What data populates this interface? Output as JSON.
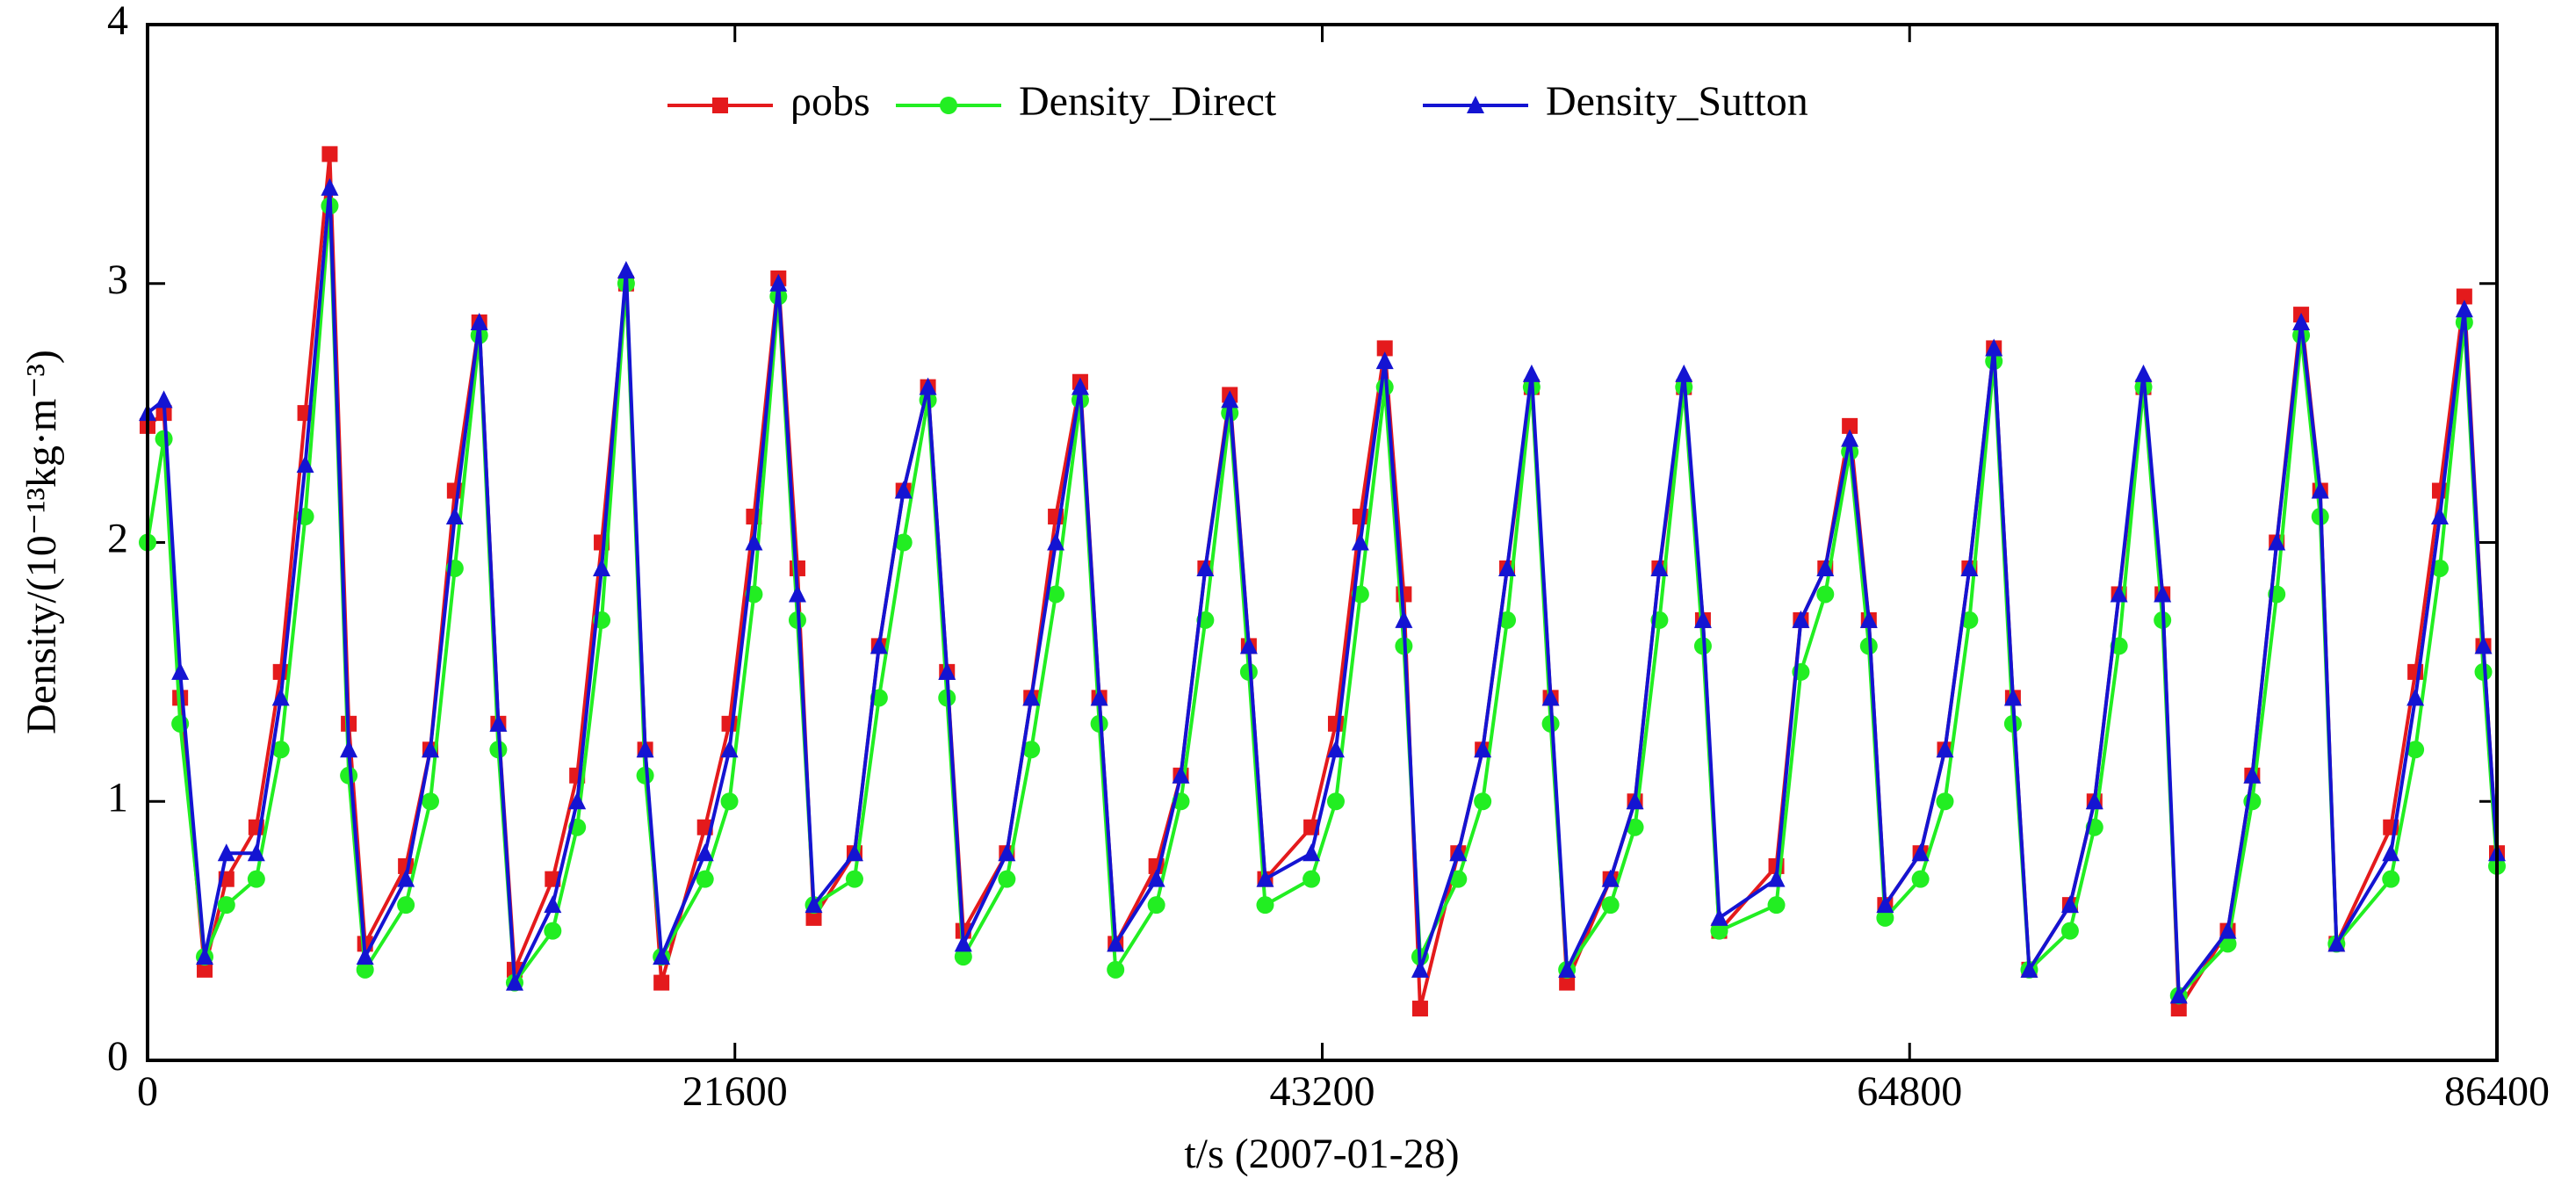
{
  "chart_data": {
    "type": "line",
    "xlabel": "t/s (2007-01-28)",
    "ylabel": "Density/(10⁻¹³kg·m⁻³)",
    "xlim": [
      0,
      86400
    ],
    "xticks": [
      0,
      21600,
      43200,
      64800,
      86400
    ],
    "ylim": [
      0,
      4
    ],
    "yticks": [
      0,
      1,
      2,
      3,
      4
    ],
    "legend": "top",
    "x": [
      0,
      600,
      1200,
      2100,
      2900,
      4000,
      4900,
      5800,
      6700,
      7400,
      8000,
      9500,
      10400,
      11300,
      12200,
      12900,
      13500,
      14900,
      15800,
      16700,
      17600,
      18300,
      18900,
      20500,
      21400,
      22300,
      23200,
      23900,
      24500,
      26000,
      26900,
      27800,
      28700,
      29400,
      30000,
      31600,
      32500,
      33400,
      34300,
      35000,
      35600,
      37100,
      38000,
      38900,
      39800,
      40500,
      41100,
      42800,
      43700,
      44600,
      45500,
      46200,
      46800,
      48200,
      49100,
      50000,
      50900,
      51600,
      52200,
      53800,
      54700,
      55600,
      56500,
      57200,
      57800,
      59900,
      60800,
      61700,
      62600,
      63300,
      63900,
      65200,
      66100,
      67000,
      67900,
      68600,
      69200,
      70700,
      71600,
      72500,
      73400,
      74100,
      74700,
      76500,
      77400,
      78300,
      79200,
      79900,
      80500,
      82500,
      83400,
      84300,
      85200,
      85900,
      86400
    ],
    "series": [
      {
        "name": "ρobs",
        "color": "#e41a1c",
        "marker": "square",
        "values": [
          2.45,
          2.5,
          1.4,
          0.35,
          0.7,
          0.9,
          1.5,
          2.5,
          3.5,
          1.3,
          0.45,
          0.75,
          1.2,
          2.2,
          2.85,
          1.3,
          0.35,
          0.7,
          1.1,
          2.0,
          3.0,
          1.2,
          0.3,
          0.9,
          1.3,
          2.1,
          3.02,
          1.9,
          0.55,
          0.8,
          1.6,
          2.2,
          2.6,
          1.5,
          0.5,
          0.8,
          1.4,
          2.1,
          2.62,
          1.4,
          0.45,
          0.75,
          1.1,
          1.9,
          2.57,
          1.6,
          0.7,
          0.9,
          1.3,
          2.1,
          2.75,
          1.8,
          0.2,
          0.8,
          1.2,
          1.9,
          2.6,
          1.4,
          0.3,
          0.7,
          1.0,
          1.9,
          2.6,
          1.7,
          0.5,
          0.75,
          1.7,
          1.9,
          2.45,
          1.7,
          0.6,
          0.8,
          1.2,
          1.9,
          2.75,
          1.4,
          0.35,
          0.6,
          1.0,
          1.8,
          2.6,
          1.8,
          0.2,
          0.5,
          1.1,
          2.0,
          2.88,
          2.2,
          0.45,
          0.9,
          1.5,
          2.2,
          2.95,
          1.6,
          0.8
        ]
      },
      {
        "name": "Density_Direct",
        "color": "#22ee22",
        "marker": "circle",
        "values": [
          2.0,
          2.4,
          1.3,
          0.4,
          0.6,
          0.7,
          1.2,
          2.1,
          3.3,
          1.1,
          0.35,
          0.6,
          1.0,
          1.9,
          2.8,
          1.2,
          0.3,
          0.5,
          0.9,
          1.7,
          3.0,
          1.1,
          0.4,
          0.7,
          1.0,
          1.8,
          2.95,
          1.7,
          0.6,
          0.7,
          1.4,
          2.0,
          2.55,
          1.4,
          0.4,
          0.7,
          1.2,
          1.8,
          2.55,
          1.3,
          0.35,
          0.6,
          1.0,
          1.7,
          2.5,
          1.5,
          0.6,
          0.7,
          1.0,
          1.8,
          2.6,
          1.6,
          0.4,
          0.7,
          1.0,
          1.7,
          2.6,
          1.3,
          0.35,
          0.6,
          0.9,
          1.7,
          2.6,
          1.6,
          0.5,
          0.6,
          1.5,
          1.8,
          2.35,
          1.6,
          0.55,
          0.7,
          1.0,
          1.7,
          2.7,
          1.3,
          0.35,
          0.5,
          0.9,
          1.6,
          2.6,
          1.7,
          0.25,
          0.45,
          1.0,
          1.8,
          2.8,
          2.1,
          0.45,
          0.7,
          1.2,
          1.9,
          2.85,
          1.5,
          0.75
        ]
      },
      {
        "name": "Density_Sutton",
        "color": "#1414d2",
        "marker": "triangle",
        "values": [
          2.5,
          2.55,
          1.5,
          0.4,
          0.8,
          0.8,
          1.4,
          2.3,
          3.37,
          1.2,
          0.4,
          0.7,
          1.2,
          2.1,
          2.85,
          1.3,
          0.3,
          0.6,
          1.0,
          1.9,
          3.05,
          1.2,
          0.4,
          0.8,
          1.2,
          2.0,
          3.0,
          1.8,
          0.6,
          0.8,
          1.6,
          2.2,
          2.6,
          1.5,
          0.45,
          0.8,
          1.4,
          2.0,
          2.6,
          1.4,
          0.45,
          0.7,
          1.1,
          1.9,
          2.55,
          1.6,
          0.7,
          0.8,
          1.2,
          2.0,
          2.7,
          1.7,
          0.35,
          0.8,
          1.2,
          1.9,
          2.65,
          1.4,
          0.35,
          0.7,
          1.0,
          1.9,
          2.65,
          1.7,
          0.55,
          0.7,
          1.7,
          1.9,
          2.4,
          1.7,
          0.6,
          0.8,
          1.2,
          1.9,
          2.75,
          1.4,
          0.35,
          0.6,
          1.0,
          1.8,
          2.65,
          1.8,
          0.25,
          0.5,
          1.1,
          2.0,
          2.85,
          2.2,
          0.45,
          0.8,
          1.4,
          2.1,
          2.9,
          1.6,
          0.8
        ]
      }
    ]
  }
}
